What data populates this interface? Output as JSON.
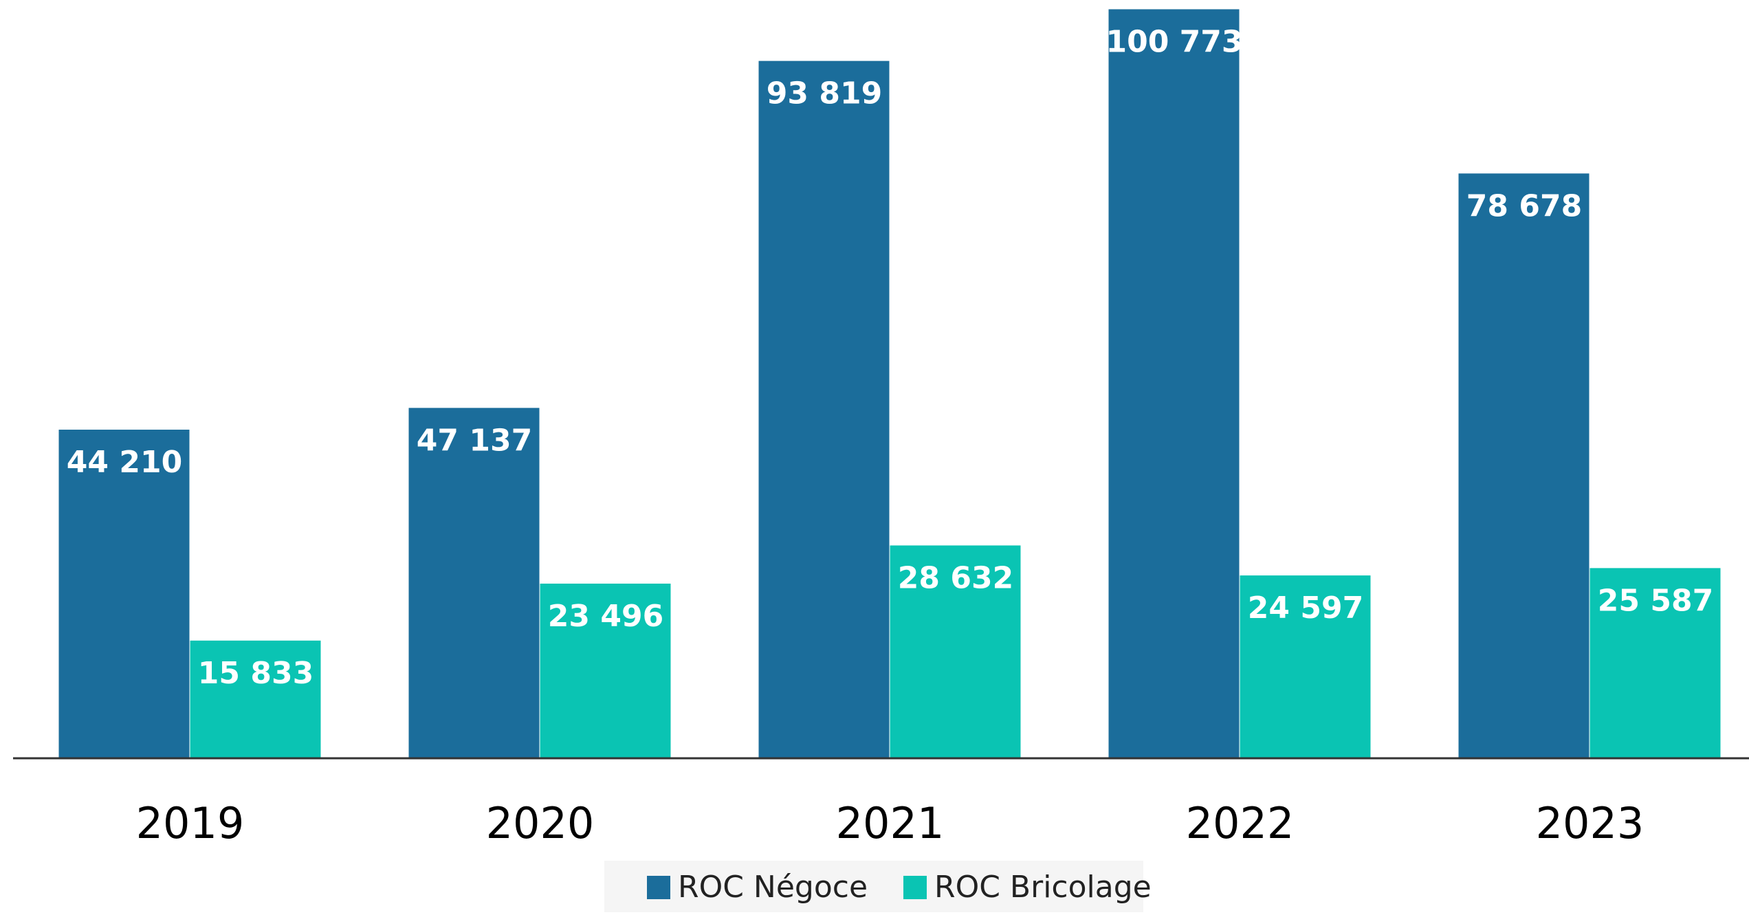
{
  "chart_data": {
    "type": "bar",
    "categories": [
      "2019",
      "2020",
      "2021",
      "2022",
      "2023"
    ],
    "series": [
      {
        "name": "ROC Négoce",
        "color": "#1b6d9b",
        "values": [
          44210,
          47137,
          93819,
          100773,
          78678
        ],
        "value_labels": [
          "44 210",
          "47 137",
          "93 819",
          "100 773",
          "78 678"
        ]
      },
      {
        "name": "ROC Bricolage",
        "color": "#0ac4b3",
        "values": [
          15833,
          23496,
          28632,
          24597,
          25587
        ],
        "value_labels": [
          "15 833",
          "23 496",
          "28 632",
          "24 597",
          "25 587"
        ]
      }
    ],
    "ylim": [
      0,
      101000
    ],
    "legend": "bottom"
  }
}
